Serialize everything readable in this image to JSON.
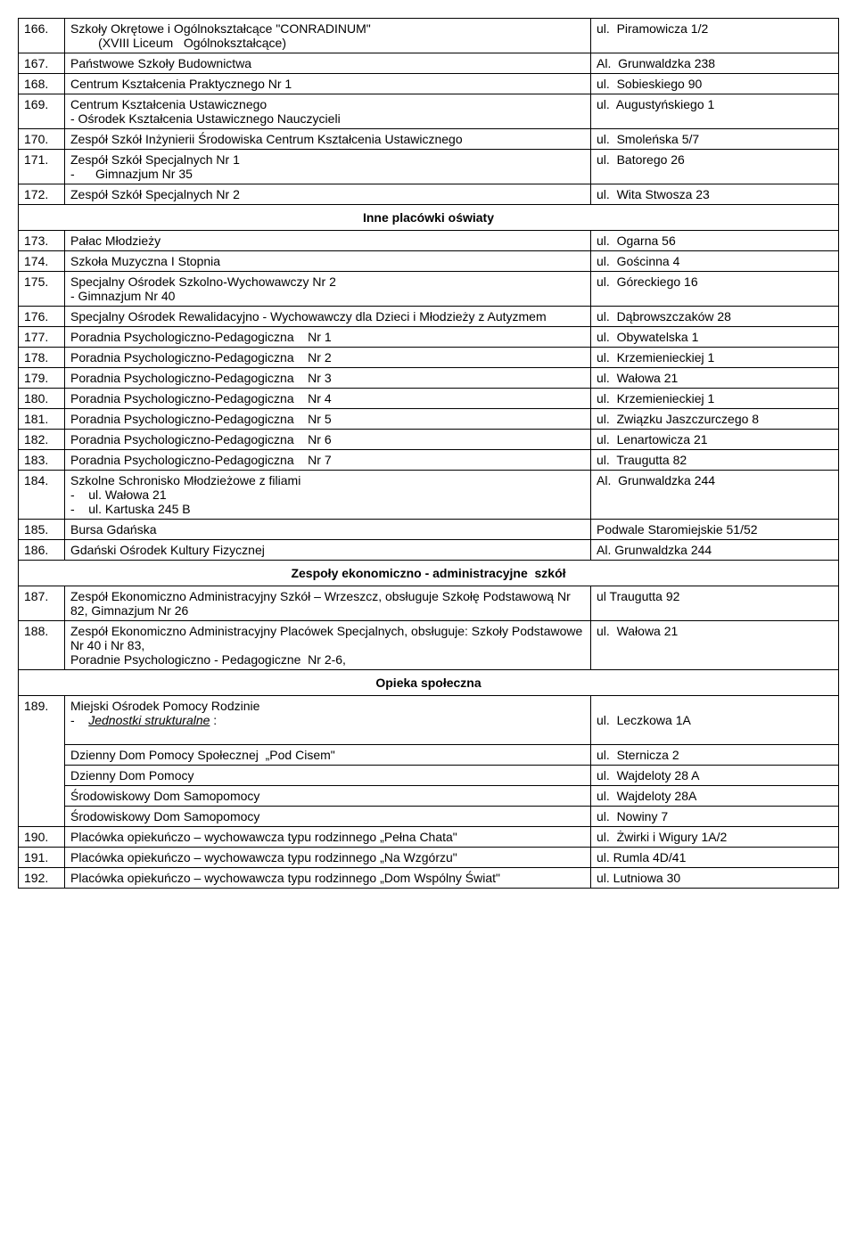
{
  "sections": [
    {
      "rows": [
        {
          "n": "166.",
          "name": "Szkoły Okrętowe i Ogólnokształcące \"CONRADINUM\"\n        (XVIII Liceum   Ogólnokształcące)",
          "addr": "ul.  Piramowicza 1/2"
        },
        {
          "n": "167.",
          "name": "Państwowe Szkoły Budownictwa",
          "addr": "Al.  Grunwaldzka 238"
        },
        {
          "n": "168.",
          "name": "Centrum Kształcenia Praktycznego Nr 1",
          "addr": "ul.  Sobieskiego 90"
        },
        {
          "n": "169.",
          "name": "Centrum Kształcenia Ustawicznego\n- Ośrodek Kształcenia Ustawicznego Nauczycieli",
          "addr": "ul.  Augustyńskiego 1"
        },
        {
          "n": "170.",
          "name": "Zespół Szkół Inżynierii Środowiska Centrum Kształcenia Ustawicznego",
          "addr": "ul.  Smoleńska 5/7"
        },
        {
          "n": "171.",
          "name": "Zespół Szkół Specjalnych Nr 1\n-      Gimnazjum Nr 35",
          "addr": "ul.  Batorego 26"
        },
        {
          "n": "172.",
          "name": "Zespół Szkół Specjalnych Nr 2",
          "addr": "ul.  Wita Stwosza 23"
        }
      ]
    },
    {
      "header": "Inne placówki oświaty",
      "rows": [
        {
          "n": "173.",
          "name": "Pałac Młodzieży",
          "addr": "ul.  Ogarna 56"
        },
        {
          "n": "174.",
          "name": "Szkoła Muzyczna I Stopnia",
          "addr": "ul.  Gościnna 4"
        },
        {
          "n": "175.",
          "name": "Specjalny Ośrodek Szkolno-Wychowawczy Nr 2\n- Gimnazjum Nr 40",
          "addr": "ul.  Góreckiego 16"
        },
        {
          "n": "176.",
          "name": "Specjalny Ośrodek Rewalidacyjno - Wychowawczy dla Dzieci i Młodzieży z Autyzmem",
          "addr": "ul.  Dąbrowszczaków 28"
        },
        {
          "n": "177.",
          "name": "Poradnia Psychologiczno-Pedagogiczna    Nr 1",
          "addr": "ul.  Obywatelska 1"
        },
        {
          "n": "178.",
          "name": "Poradnia Psychologiczno-Pedagogiczna    Nr 2",
          "addr": "ul.  Krzemienieckiej 1"
        },
        {
          "n": "179.",
          "name": "Poradnia Psychologiczno-Pedagogiczna    Nr 3",
          "addr": "ul.  Wałowa 21"
        },
        {
          "n": "180.",
          "name": "Poradnia Psychologiczno-Pedagogiczna    Nr 4",
          "addr": "ul.  Krzemienieckiej 1"
        },
        {
          "n": "181.",
          "name": "Poradnia Psychologiczno-Pedagogiczna    Nr 5",
          "addr": "ul.  Związku Jaszczurczego 8"
        },
        {
          "n": "182.",
          "name": "Poradnia Psychologiczno-Pedagogiczna    Nr 6",
          "addr": "ul.  Lenartowicza 21"
        },
        {
          "n": "183.",
          "name": "Poradnia Psychologiczno-Pedagogiczna    Nr 7",
          "addr": "ul.  Traugutta 82"
        },
        {
          "n": "184.",
          "name": "Szkolne Schronisko Młodzieżowe z filiami\n-    ul. Wałowa 21\n-    ul. Kartuska 245 B",
          "addr": "Al.  Grunwaldzka 244"
        },
        {
          "n": "185.",
          "name": "Bursa Gdańska",
          "addr": "Podwale Staromiejskie 51/52"
        },
        {
          "n": "186.",
          "name": "Gdański Ośrodek Kultury Fizycznej",
          "addr": "Al. Grunwaldzka 244"
        }
      ]
    },
    {
      "header": "Zespoły ekonomiczno - administracyjne  szkół",
      "rows": [
        {
          "n": "187.",
          "name": "Zespół Ekonomiczno Administracyjny Szkół – Wrzeszcz, obsługuje Szkołę Podstawową Nr 82, Gimnazjum Nr 26",
          "addr": "ul Traugutta 92"
        },
        {
          "n": "188.",
          "name": "Zespół Ekonomiczno Administracyjny Placówek Specjalnych, obsługuje: Szkoły Podstawowe Nr 40 i Nr 83,\nPoradnie Psychologiczno - Pedagogiczne  Nr 2-6,",
          "addr": "ul.  Wałowa 21"
        }
      ]
    }
  ],
  "opieka": {
    "header": "Opieka społeczna",
    "row189": {
      "n": "189.",
      "intro": "Miejski Ośrodek Pomocy Rodzinie",
      "sub_label": "Jednostki strukturalne",
      "sub_label_addr": "ul.  Leczkowa 1A",
      "subs": [
        {
          "name": "Dzienny Dom Pomocy Społecznej  „Pod Cisem\"",
          "addr": "ul.  Sternicza 2"
        },
        {
          "name": "Dzienny Dom Pomocy",
          "addr": "ul.  Wajdeloty 28 A"
        },
        {
          "name": "Środowiskowy Dom Samopomocy",
          "addr": "ul.  Wajdeloty 28A"
        },
        {
          "name": "Środowiskowy Dom Samopomocy",
          "addr": "ul.  Nowiny 7"
        }
      ]
    },
    "rest": [
      {
        "n": "190.",
        "name": "Placówka opiekuńczo – wychowawcza typu rodzinnego „Pełna Chata\"",
        "addr": "ul.  Żwirki i Wigury 1A/2"
      },
      {
        "n": "191.",
        "name": "Placówka opiekuńczo – wychowawcza typu rodzinnego „Na Wzgórzu\"",
        "addr": "ul. Rumla 4D/41"
      },
      {
        "n": "192.",
        "name": "Placówka opiekuńczo – wychowawcza typu rodzinnego „Dom Wspólny Świat\"",
        "addr": "ul. Lutniowa 30"
      }
    ]
  }
}
